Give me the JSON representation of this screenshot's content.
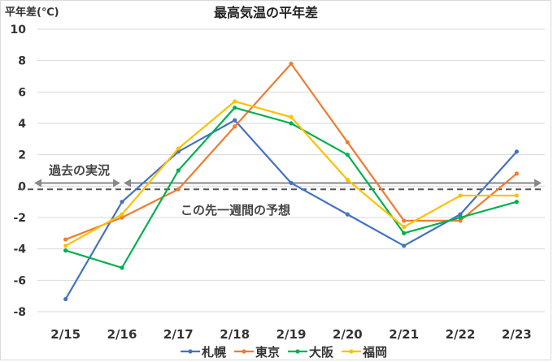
{
  "chart_data": {
    "type": "line",
    "title": "最高気温の平年差",
    "ylabel": "平年差(℃)",
    "xlabel": "",
    "categories": [
      "2/15",
      "2/16",
      "2/17",
      "2/18",
      "2/19",
      "2/20",
      "2/21",
      "2/22",
      "2/23"
    ],
    "ylim": [
      -8,
      10
    ],
    "yticks": [
      10,
      8,
      6,
      4,
      2,
      0,
      -2,
      -4,
      -6,
      -8
    ],
    "grid": true,
    "legend": "bottom",
    "series": [
      {
        "name": "札幌",
        "color": "#4472C4",
        "values": [
          -7.2,
          -1.0,
          2.2,
          4.2,
          0.2,
          -1.8,
          -3.8,
          -1.8,
          2.2
        ]
      },
      {
        "name": "東京",
        "color": "#ED7D31",
        "values": [
          -3.4,
          -2.0,
          -0.2,
          3.8,
          7.8,
          2.8,
          -2.2,
          -2.2,
          0.8
        ]
      },
      {
        "name": "大阪",
        "color": "#00B050",
        "values": [
          -4.1,
          -5.2,
          1.0,
          5.0,
          4.0,
          2.0,
          -3.0,
          -2.0,
          -1.0
        ]
      },
      {
        "name": "福岡",
        "color": "#FFC000",
        "values": [
          -3.8,
          -1.8,
          2.4,
          5.4,
          4.4,
          0.4,
          -2.6,
          -0.6,
          -0.6
        ]
      }
    ],
    "reference_line": {
      "value": -0.2,
      "style": "dashed",
      "color": "#555555"
    },
    "annotations": {
      "past": "過去の実況",
      "future": "この先一週間の予想"
    }
  }
}
